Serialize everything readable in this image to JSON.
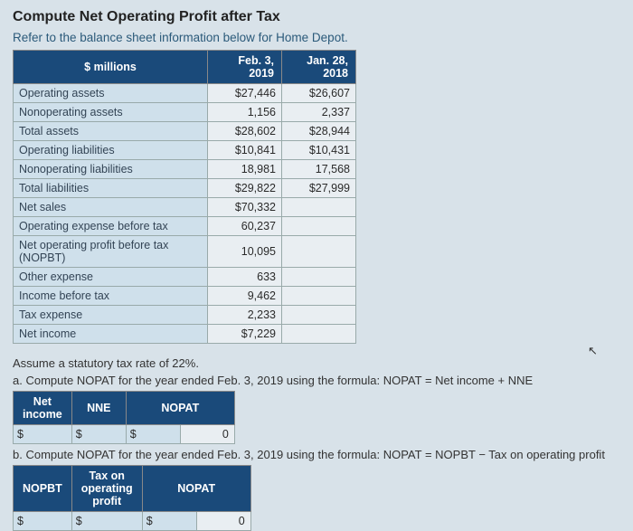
{
  "title": "Compute Net Operating Profit after Tax",
  "subtitle": "Refer to the balance sheet information below for Home Depot.",
  "balance": {
    "header_label": "$ millions",
    "col1": "Feb. 3, 2019",
    "col2": "Jan. 28, 2018",
    "rows": [
      {
        "label": "Operating assets",
        "v1": "$27,446",
        "v2": "$26,607"
      },
      {
        "label": "Nonoperating assets",
        "v1": "1,156",
        "v2": "2,337"
      },
      {
        "label": "Total assets",
        "v1": "$28,602",
        "v2": "$28,944"
      },
      {
        "label": "Operating liabilities",
        "v1": "$10,841",
        "v2": "$10,431"
      },
      {
        "label": "Nonoperating liabilities",
        "v1": "18,981",
        "v2": "17,568"
      },
      {
        "label": "Total liabilities",
        "v1": "$29,822",
        "v2": "$27,999"
      },
      {
        "label": "Net sales",
        "v1": "$70,332",
        "v2": ""
      },
      {
        "label": "Operating expense before tax",
        "v1": "60,237",
        "v2": ""
      },
      {
        "label": "Net operating profit before tax (NOPBT)",
        "v1": "10,095",
        "v2": ""
      },
      {
        "label": "Other expense",
        "v1": "633",
        "v2": ""
      },
      {
        "label": "Income before tax",
        "v1": "9,462",
        "v2": ""
      },
      {
        "label": "Tax expense",
        "v1": "2,233",
        "v2": ""
      },
      {
        "label": "Net income",
        "v1": "$7,229",
        "v2": ""
      }
    ]
  },
  "assume": "Assume a statutory tax rate of 22%.",
  "qa": {
    "text": "a. Compute NOPAT for the year ended Feb. 3, 2019 using the formula: NOPAT = Net income + NNE",
    "headers": [
      "Net income",
      "NNE",
      "NOPAT"
    ],
    "sym": "$",
    "vals": [
      "",
      "",
      "0"
    ]
  },
  "qb": {
    "text": "b. Compute NOPAT for the year ended Feb. 3, 2019 using the formula: NOPAT = NOPBT − Tax on operating profit",
    "headers": [
      "NOPBT",
      "Tax on operating profit",
      "NOPAT"
    ],
    "sym": "$",
    "vals": [
      "",
      "",
      "0"
    ]
  },
  "colors": {
    "page_bg": "#d8e2e9",
    "header_bg": "#1a4a7a",
    "header_fg": "#ffffff",
    "label_bg": "#cfe0eb",
    "val_bg": "#e9eef2",
    "border": "#99aaaa",
    "subtitle": "#2b5a7a"
  }
}
